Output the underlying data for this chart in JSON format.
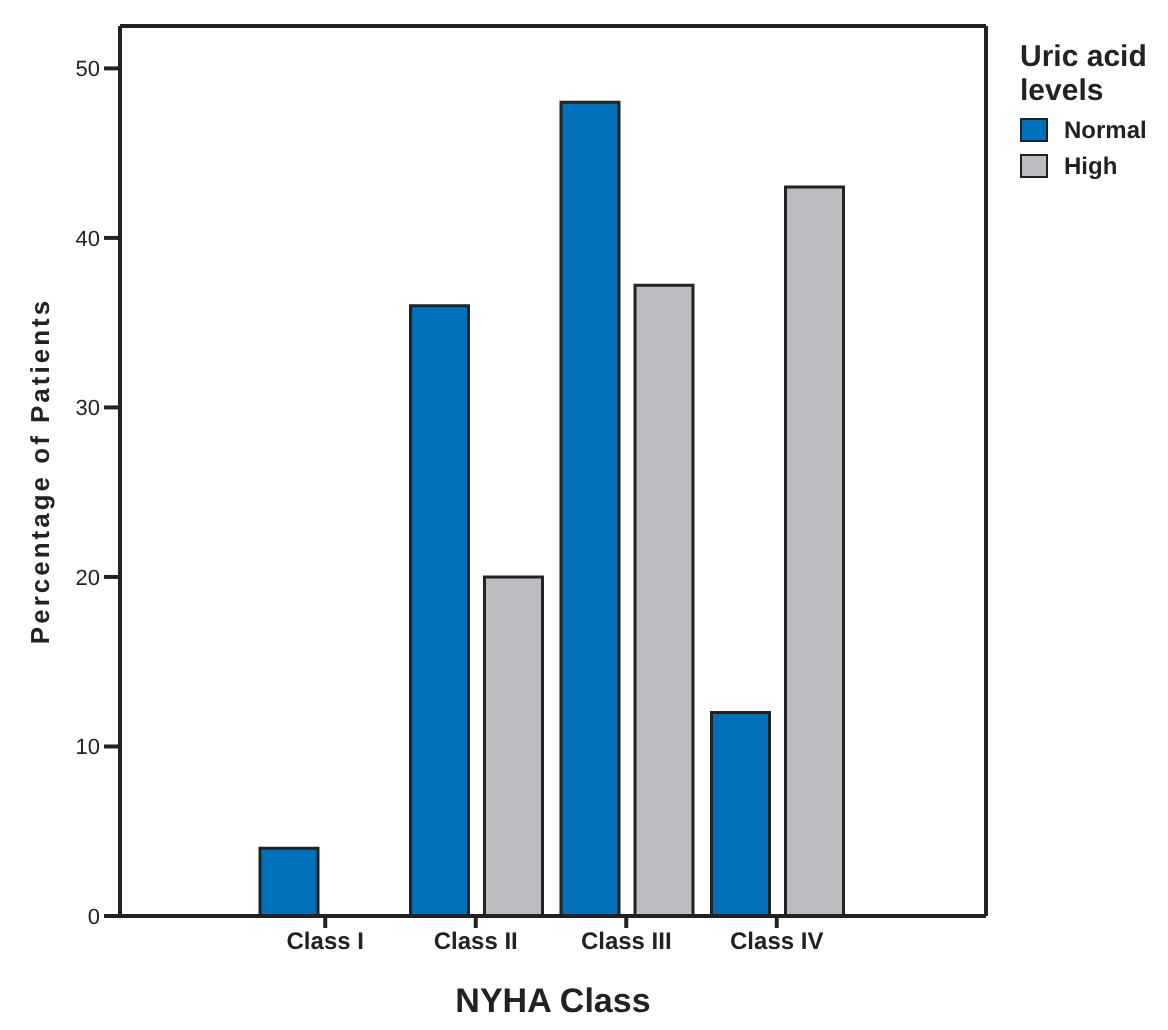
{
  "chart_data": {
    "type": "bar",
    "xlabel": "NYHA Class",
    "ylabel": "Percentage of Patients",
    "legend_title": "Uric acid levels",
    "categories": [
      "Class I",
      "Class II",
      "Class III",
      "Class IV"
    ],
    "series": [
      {
        "name": "Normal",
        "color": "#0070bb",
        "values": [
          4,
          36,
          48,
          12
        ]
      },
      {
        "name": "High",
        "color": "#bcbdc1",
        "values": [
          null,
          20,
          37.2,
          43
        ]
      }
    ],
    "ylim": [
      0,
      52.5
    ],
    "yticks": [
      0,
      10,
      20,
      30,
      40,
      50
    ],
    "grid": false,
    "legend": "top right"
  }
}
